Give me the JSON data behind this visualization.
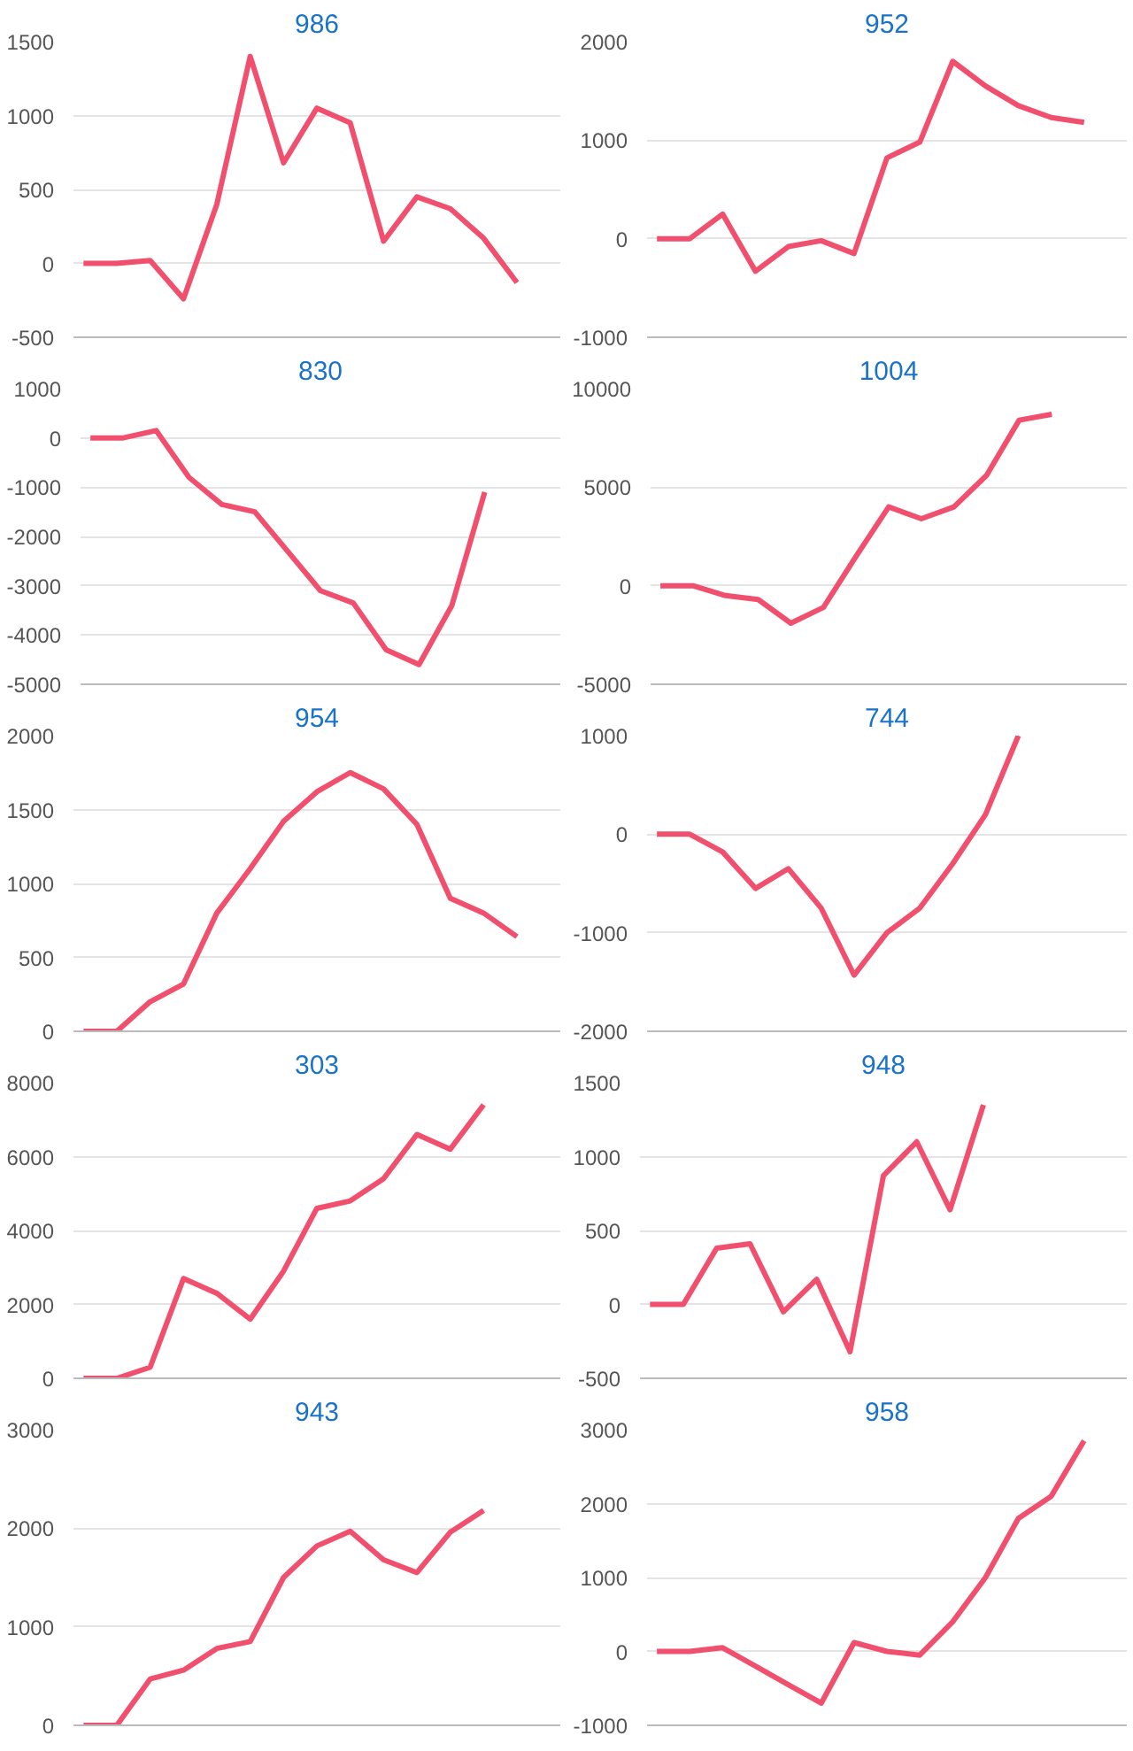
{
  "chart_data": [
    {
      "type": "line",
      "title": "986",
      "categories": [
        null,
        null,
        null,
        null,
        null,
        null,
        null,
        null,
        null,
        null,
        null,
        null,
        null,
        null,
        null
      ],
      "ylim": [
        -500,
        1500
      ],
      "yticks": [
        -500,
        0,
        500,
        1000,
        1500
      ],
      "grid": "y",
      "tick_labels": "y",
      "series": [
        {
          "color": "#f0506e",
          "values": [
            0,
            0,
            20,
            -240,
            400,
            1400,
            680,
            1050,
            950,
            150,
            450,
            370,
            170,
            -130,
            null
          ]
        }
      ]
    },
    {
      "type": "line",
      "title": "952",
      "categories": [
        null,
        null,
        null,
        null,
        null,
        null,
        null,
        null,
        null,
        null,
        null,
        null,
        null,
        null,
        null
      ],
      "ylim": [
        -1000,
        2000
      ],
      "yticks": [
        -1000,
        0,
        1000,
        2000
      ],
      "grid": "y",
      "tick_labels": "y",
      "series": [
        {
          "color": "#f0506e",
          "values": [
            0,
            0,
            250,
            -330,
            -80,
            -20,
            -150,
            820,
            980,
            1800,
            1550,
            1350,
            1230,
            1180,
            null
          ]
        }
      ]
    },
    {
      "type": "line",
      "title": "830",
      "categories": [
        null,
        null,
        null,
        null,
        null,
        null,
        null,
        null,
        null,
        null,
        null,
        null,
        null,
        null,
        null
      ],
      "ylim": [
        -5000,
        1000
      ],
      "yticks": [
        -5000,
        -4000,
        -3000,
        -2000,
        -1000,
        0,
        1000
      ],
      "grid": "y",
      "tick_labels": "y",
      "series": [
        {
          "color": "#f0506e",
          "values": [
            0,
            0,
            150,
            -800,
            -1350,
            -1500,
            -2300,
            -3100,
            -3350,
            -4300,
            -4600,
            -3400,
            -1100,
            null,
            null
          ]
        }
      ]
    },
    {
      "type": "line",
      "title": "1004",
      "categories": [
        null,
        null,
        null,
        null,
        null,
        null,
        null,
        null,
        null,
        null,
        null,
        null,
        null,
        null,
        null
      ],
      "ylim": [
        -5000,
        10000
      ],
      "yticks": [
        -5000,
        0,
        5000,
        10000
      ],
      "grid": "y",
      "tick_labels": "y",
      "series": [
        {
          "color": "#f0506e",
          "values": [
            0,
            0,
            -500,
            -700,
            -1900,
            -1100,
            1500,
            4000,
            3400,
            4000,
            5600,
            8400,
            8700,
            null,
            null
          ]
        }
      ]
    },
    {
      "type": "line",
      "title": "954",
      "categories": [
        null,
        null,
        null,
        null,
        null,
        null,
        null,
        null,
        null,
        null,
        null,
        null,
        null,
        null,
        null
      ],
      "ylim": [
        0,
        2000
      ],
      "yticks": [
        0,
        500,
        1000,
        1500,
        2000
      ],
      "grid": "y",
      "tick_labels": "y",
      "series": [
        {
          "color": "#f0506e",
          "values": [
            0,
            0,
            200,
            320,
            800,
            1100,
            1420,
            1620,
            1750,
            1640,
            1400,
            900,
            800,
            640,
            null
          ]
        }
      ]
    },
    {
      "type": "line",
      "title": "744",
      "categories": [
        null,
        null,
        null,
        null,
        null,
        null,
        null,
        null,
        null,
        null,
        null,
        null,
        null,
        null,
        null
      ],
      "ylim": [
        -2000,
        1000
      ],
      "yticks": [
        -2000,
        -1000,
        0,
        1000
      ],
      "grid": "y",
      "tick_labels": "y",
      "series": [
        {
          "color": "#f0506e",
          "values": [
            0,
            0,
            -180,
            -550,
            -350,
            -750,
            -1430,
            -1000,
            -750,
            -300,
            200,
            1000,
            null,
            null,
            null
          ]
        }
      ]
    },
    {
      "type": "line",
      "title": "303",
      "categories": [
        null,
        null,
        null,
        null,
        null,
        null,
        null,
        null,
        null,
        null,
        null,
        null,
        null,
        null,
        null
      ],
      "ylim": [
        0,
        8000
      ],
      "yticks": [
        0,
        2000,
        4000,
        6000,
        8000
      ],
      "grid": "y",
      "tick_labels": "y",
      "series": [
        {
          "color": "#f0506e",
          "values": [
            0,
            0,
            300,
            2700,
            2300,
            1600,
            2900,
            4600,
            4800,
            5400,
            6600,
            6200,
            7400,
            null,
            null
          ]
        }
      ]
    },
    {
      "type": "line",
      "title": "948",
      "categories": [
        null,
        null,
        null,
        null,
        null,
        null,
        null,
        null,
        null,
        null,
        null,
        null,
        null,
        null,
        null
      ],
      "ylim": [
        -500,
        1500
      ],
      "yticks": [
        -500,
        0,
        500,
        1000,
        1500
      ],
      "grid": "y",
      "tick_labels": "y",
      "series": [
        {
          "color": "#f0506e",
          "values": [
            0,
            0,
            380,
            410,
            -50,
            170,
            -320,
            870,
            1100,
            640,
            1350,
            null,
            null,
            null,
            null
          ]
        }
      ]
    },
    {
      "type": "line",
      "title": "943",
      "categories": [
        null,
        null,
        null,
        null,
        null,
        null,
        null,
        null,
        null,
        null,
        null,
        null,
        null,
        null,
        null
      ],
      "ylim": [
        0,
        3000
      ],
      "yticks": [
        0,
        1000,
        2000,
        3000
      ],
      "grid": "y",
      "tick_labels": "y",
      "series": [
        {
          "color": "#f0506e",
          "values": [
            0,
            0,
            470,
            560,
            780,
            850,
            1500,
            1820,
            1970,
            1680,
            1550,
            1960,
            2180,
            null,
            null
          ]
        }
      ]
    },
    {
      "type": "line",
      "title": "958",
      "categories": [
        null,
        null,
        null,
        null,
        null,
        null,
        null,
        null,
        null,
        null,
        null,
        null,
        null,
        null,
        null
      ],
      "ylim": [
        -1000,
        3000
      ],
      "yticks": [
        -1000,
        0,
        1000,
        2000,
        3000
      ],
      "grid": "y",
      "tick_labels": "y",
      "series": [
        {
          "color": "#f0506e",
          "values": [
            0,
            0,
            50,
            -200,
            -450,
            -700,
            120,
            0,
            -50,
            400,
            1000,
            1800,
            2100,
            2850,
            null
          ]
        }
      ]
    }
  ]
}
